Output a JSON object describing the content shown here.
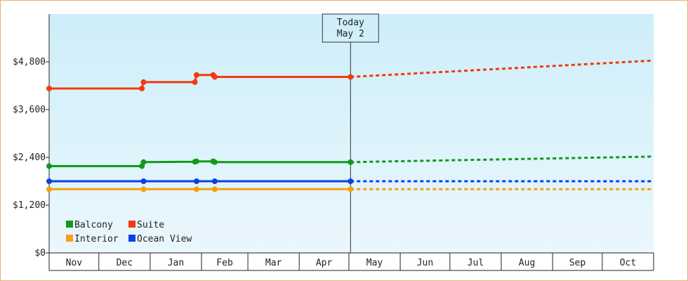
{
  "chart_data": {
    "type": "line",
    "title": "",
    "xlabel": "",
    "ylabel": "",
    "ylim": [
      0,
      6000
    ],
    "yticks": [
      0,
      1200,
      2400,
      3600,
      4800
    ],
    "ytick_labels": [
      "$0",
      "$1,200",
      "$2,400",
      "$3,600",
      "$4,800"
    ],
    "x_range": [
      "2018-11-01",
      "2019-10-31"
    ],
    "months": [
      "Nov",
      "Dec",
      "Jan",
      "Feb",
      "Mar",
      "Apr",
      "May",
      "Jun",
      "Jul",
      "Aug",
      "Sep",
      "Oct"
    ],
    "today_marker": {
      "date": "2019-05-02",
      "label_line1": "Today",
      "label_line2": "May 2"
    },
    "legend_placement": "bottom-left",
    "grid": false,
    "background_gradient": [
      "#ceeef9",
      "#eaf7fc"
    ],
    "series": [
      {
        "name": "Balcony",
        "color": "#11991a",
        "points": [
          [
            "2018-11-01",
            2180
          ],
          [
            "2018-12-27",
            2180
          ],
          [
            "2018-12-28",
            2280
          ],
          [
            "2019-01-28",
            2290
          ],
          [
            "2019-01-29",
            2300
          ],
          [
            "2019-02-08",
            2300
          ],
          [
            "2019-02-09",
            2280
          ],
          [
            "2019-05-02",
            2280
          ]
        ],
        "markers": [
          [
            "2018-11-01",
            2180
          ],
          [
            "2018-12-27",
            2180
          ],
          [
            "2018-12-28",
            2280
          ],
          [
            "2019-01-28",
            2290
          ],
          [
            "2019-01-29",
            2300
          ],
          [
            "2019-02-08",
            2300
          ],
          [
            "2019-02-09",
            2280
          ],
          [
            "2019-05-02",
            2280
          ]
        ],
        "forecast": [
          [
            "2019-05-02",
            2280
          ],
          [
            "2019-10-31",
            2420
          ]
        ]
      },
      {
        "name": "Suite",
        "color": "#f23a0f",
        "points": [
          [
            "2018-11-01",
            4130
          ],
          [
            "2018-12-27",
            4130
          ],
          [
            "2018-12-28",
            4290
          ],
          [
            "2019-01-28",
            4290
          ],
          [
            "2019-01-29",
            4470
          ],
          [
            "2019-02-08",
            4470
          ],
          [
            "2019-02-09",
            4420
          ],
          [
            "2019-05-02",
            4420
          ]
        ],
        "markers": [
          [
            "2018-11-01",
            4130
          ],
          [
            "2018-12-27",
            4130
          ],
          [
            "2018-12-28",
            4290
          ],
          [
            "2019-01-28",
            4290
          ],
          [
            "2019-01-29",
            4470
          ],
          [
            "2019-02-08",
            4470
          ],
          [
            "2019-02-09",
            4420
          ],
          [
            "2019-05-02",
            4420
          ]
        ],
        "forecast": [
          [
            "2019-05-02",
            4420
          ],
          [
            "2019-10-31",
            4830
          ]
        ]
      },
      {
        "name": "Interior",
        "color": "#f5a00d",
        "points": [
          [
            "2018-11-01",
            1600
          ],
          [
            "2019-05-02",
            1600
          ]
        ],
        "markers": [
          [
            "2018-11-01",
            1600
          ],
          [
            "2018-12-28",
            1600
          ],
          [
            "2019-01-29",
            1600
          ],
          [
            "2019-02-09",
            1600
          ],
          [
            "2019-05-02",
            1600
          ]
        ],
        "forecast": [
          [
            "2019-05-02",
            1600
          ],
          [
            "2019-10-31",
            1600
          ]
        ]
      },
      {
        "name": "Ocean View",
        "color": "#0a3fe8",
        "points": [
          [
            "2018-11-01",
            1800
          ],
          [
            "2019-05-02",
            1800
          ]
        ],
        "markers": [
          [
            "2018-11-01",
            1800
          ],
          [
            "2018-12-28",
            1800
          ],
          [
            "2019-01-29",
            1800
          ],
          [
            "2019-02-09",
            1800
          ],
          [
            "2019-05-02",
            1800
          ]
        ],
        "forecast": [
          [
            "2019-05-02",
            1800
          ],
          [
            "2019-10-31",
            1800
          ]
        ]
      }
    ]
  }
}
